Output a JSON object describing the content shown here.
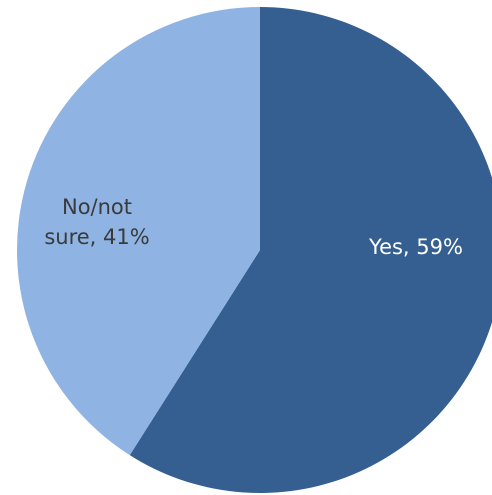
{
  "chart_data": {
    "type": "pie",
    "title": "",
    "start_angle_deg": 0,
    "direction": "clockwise",
    "slices": [
      {
        "label": "Yes",
        "value": 59,
        "display": "Yes, 59%",
        "color": "#355f91",
        "label_color": "#ffffff"
      },
      {
        "label": "No/not sure",
        "value": 41,
        "display": "No/not sure, 41%",
        "display_lines": [
          "No/not",
          "sure, 41%"
        ],
        "color": "#8fb4e3",
        "label_color": "#3a3a3a"
      }
    ]
  }
}
